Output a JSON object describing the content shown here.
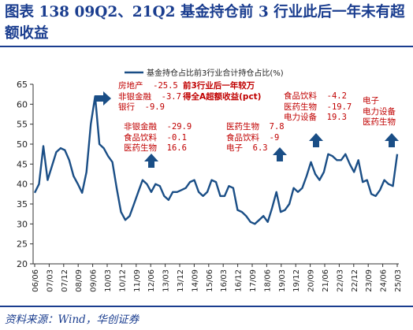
{
  "title": "图表 138  09Q2、21Q2 基金持仓前 3 行业此后一年未有超额收益",
  "source": "资料来源：Wind，华创证券",
  "colors": {
    "line": "#1a4e86",
    "annotation": "#c00000",
    "accent": "#1a3d8f",
    "arrow": "#1a4e86"
  },
  "annotations": [
    {
      "id": "a09q2",
      "lines": [
        "房地产  -25.5",
        "非银金融  -3.7",
        "银行  -9.9"
      ]
    },
    {
      "id": "a09note",
      "lines": [
        "前3行业后一年较万",
        "得全A超额收益(pct)"
      ]
    },
    {
      "id": "a12",
      "lines": [
        "非银金融  -29.9",
        "食品饮料  -0.1",
        "医药生物  16.6"
      ]
    },
    {
      "id": "a19",
      "lines": [
        "医药生物  7.8",
        "食品饮料  -9",
        "电子  6.3"
      ]
    },
    {
      "id": "a21",
      "lines": [
        "食品饮料  -4.2",
        "医药生物  -19.7",
        "电力设备  19.3"
      ]
    },
    {
      "id": "a25",
      "lines": [
        "电子",
        "电力设备",
        "医药生物"
      ]
    }
  ],
  "chart_data": {
    "type": "line",
    "legend": "基金持仓占比前3行业合计持仓占比(%)",
    "legend_position": "top-center",
    "grid": false,
    "ylim": [
      20,
      65
    ],
    "yticks": [
      20,
      25,
      30,
      35,
      40,
      45,
      50,
      55,
      60,
      65
    ],
    "xtick_labels": [
      "06/06",
      "07/03",
      "07/12",
      "08/09",
      "09/06",
      "10/03",
      "10/12",
      "11/09",
      "12/06",
      "13/03",
      "13/12",
      "14/09",
      "15/06",
      "16/03",
      "16/12",
      "17/09",
      "18/06",
      "19/03",
      "19/12",
      "20/09",
      "21/06",
      "22/03",
      "22/12",
      "23/09",
      "24/06",
      "25/03"
    ],
    "series": [
      {
        "values": [
          37.8,
          40,
          49.5,
          41,
          44.5,
          48,
          49,
          48.5,
          46,
          42,
          40,
          37.8,
          43,
          55,
          62,
          50,
          49,
          47,
          45.5,
          39,
          33,
          31,
          32,
          35,
          38,
          41,
          40,
          38,
          40,
          39.5,
          37,
          36,
          38,
          38,
          38.5,
          39,
          40.5,
          41,
          38,
          37,
          38,
          41,
          40.5,
          37,
          37,
          39.5,
          39,
          33.5,
          33,
          32,
          30.5,
          30,
          31,
          32,
          30.5,
          34,
          38,
          33,
          33.5,
          35,
          39,
          38,
          39,
          42,
          45.5,
          42.5,
          41,
          43,
          47.5,
          47,
          46,
          46,
          47.5,
          45,
          43,
          46,
          40.5,
          41,
          37.5,
          37,
          38.5,
          41,
          40,
          39.5,
          47.5
        ]
      }
    ]
  }
}
